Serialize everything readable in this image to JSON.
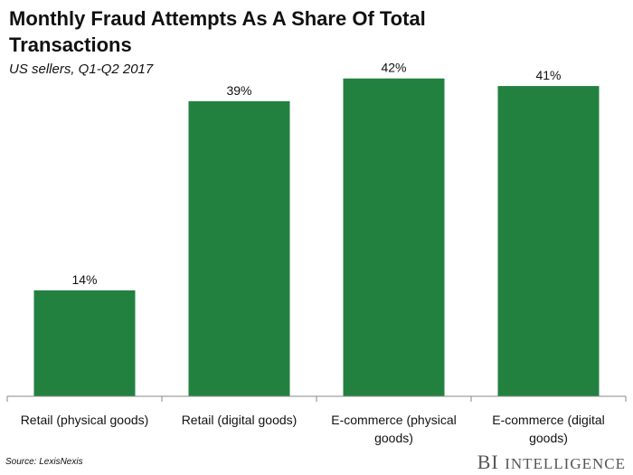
{
  "chart_data": {
    "type": "bar",
    "title": "Monthly Fraud Attempts As A Share Of Total Transactions",
    "subtitle": "US sellers, Q1-Q2 2017",
    "categories": [
      "Retail (physical goods)",
      "Retail (digital goods)",
      "E-commerce (physical goods)",
      "E-commerce (digital goods)"
    ],
    "category_lines": [
      [
        "Retail (physical goods)"
      ],
      [
        "Retail (digital goods)"
      ],
      [
        "E-commerce (physical",
        "goods)"
      ],
      [
        "E-commerce (digital",
        "goods)"
      ]
    ],
    "values": [
      14,
      39,
      42,
      41
    ],
    "value_labels": [
      "14%",
      "39%",
      "42%",
      "41%"
    ],
    "ylim": [
      0,
      44
    ],
    "grid": false,
    "bar_color": "#238140"
  },
  "source": "Source: LexisNexis",
  "brand": {
    "prefix": "BI",
    "name": "Intelligence"
  }
}
